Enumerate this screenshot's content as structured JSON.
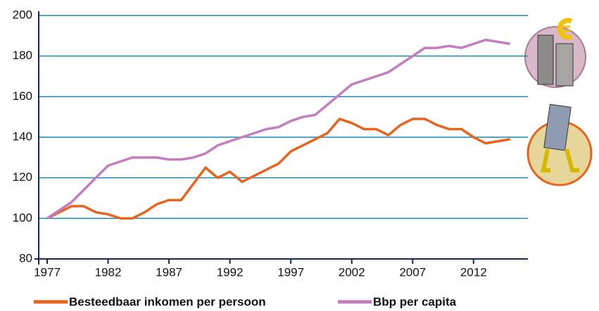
{
  "chart_data": {
    "type": "line",
    "x": [
      1977,
      1978,
      1979,
      1980,
      1981,
      1982,
      1983,
      1984,
      1985,
      1986,
      1987,
      1988,
      1989,
      1990,
      1991,
      1992,
      1993,
      1994,
      1995,
      1996,
      1997,
      1998,
      1999,
      2000,
      2001,
      2002,
      2003,
      2004,
      2005,
      2006,
      2007,
      2008,
      2009,
      2010,
      2011,
      2012,
      2013,
      2014,
      2015
    ],
    "series": [
      {
        "name": "Besteedbaar inkomen per persoon",
        "color": "#e8641e",
        "values": [
          100,
          103,
          106,
          106,
          103,
          102,
          100,
          100,
          103,
          107,
          109,
          109,
          117,
          125,
          120,
          123,
          118,
          121,
          124,
          127,
          133,
          136,
          139,
          142,
          149,
          147,
          144,
          144,
          141,
          146,
          149,
          149,
          146,
          144,
          144,
          140,
          137,
          138,
          139
        ]
      },
      {
        "name": "Bbp per capita",
        "color": "#c47dbf",
        "values": [
          100,
          104,
          108,
          114,
          120,
          126,
          128,
          130,
          130,
          130,
          129,
          129,
          130,
          132,
          136,
          138,
          140,
          142,
          144,
          145,
          148,
          150,
          151,
          156,
          161,
          166,
          168,
          170,
          172,
          176,
          180,
          184,
          184,
          185,
          184,
          186,
          188,
          187,
          186
        ]
      }
    ],
    "xlim": [
      1977,
      2016
    ],
    "xticks": [
      1977,
      1982,
      1987,
      1992,
      1997,
      2002,
      2007,
      2012
    ],
    "ylim": [
      80,
      200
    ],
    "yticks": [
      80,
      100,
      120,
      140,
      160,
      180,
      200
    ],
    "grid": true
  }
}
